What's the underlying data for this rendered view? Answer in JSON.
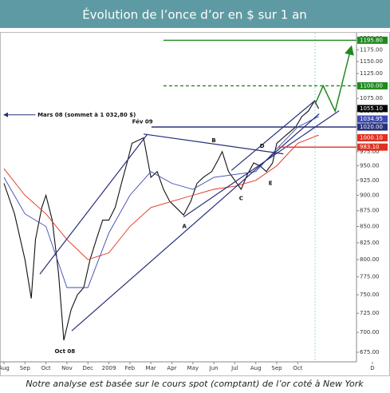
{
  "chart_data": {
    "type": "line",
    "title": "Évolution de l’once d’or en $ sur 1 an",
    "caption": "Notre analyse est basée sur le cours spot (comptant) de l’or coté à New York",
    "log_scale": true,
    "xlim": [
      -0.19,
      16.8
    ],
    "ylim": [
      675,
      1200
    ],
    "xticks": [
      {
        "value": 0,
        "label": "Aug"
      },
      {
        "value": 1,
        "label": "Sep"
      },
      {
        "value": 2,
        "label": "Oct"
      },
      {
        "value": 3,
        "label": "Nov"
      },
      {
        "value": 4,
        "label": "Dec"
      },
      {
        "value": 5,
        "label": "2009"
      },
      {
        "value": 6,
        "label": "Feb"
      },
      {
        "value": 7,
        "label": "Mar"
      },
      {
        "value": 8,
        "label": "Apr"
      },
      {
        "value": 9,
        "label": "May"
      },
      {
        "value": 10,
        "label": "Jun"
      },
      {
        "value": 11,
        "label": "Jul"
      },
      {
        "value": 12,
        "label": "Aug"
      },
      {
        "value": 13,
        "label": "Sep"
      },
      {
        "value": 14,
        "label": "Oct"
      },
      {
        "value": 17.56,
        "label": "D"
      }
    ],
    "yticks": [
      {
        "value": 675,
        "label": "675.00"
      },
      {
        "value": 700,
        "label": "700.00"
      },
      {
        "value": 725,
        "label": "725.00"
      },
      {
        "value": 750,
        "label": "750.00"
      },
      {
        "value": 775,
        "label": "775.00"
      },
      {
        "value": 800,
        "label": "800.00"
      },
      {
        "value": 825,
        "label": "825.00"
      },
      {
        "value": 850,
        "label": "850.00"
      },
      {
        "value": 875,
        "label": "875.00"
      },
      {
        "value": 900,
        "label": "900.00"
      },
      {
        "value": 925,
        "label": "925.00"
      },
      {
        "value": 950,
        "label": "950.00"
      },
      {
        "value": 975,
        "label": "975.00"
      },
      {
        "value": 1025,
        "label": "1025.00"
      },
      {
        "value": 1050,
        "label": "1050.00"
      },
      {
        "value": 1075,
        "label": "1075.00"
      },
      {
        "value": 1125,
        "label": "1125.00"
      },
      {
        "value": 1150,
        "label": "1150.00"
      },
      {
        "value": 1175,
        "label": "1175.00"
      },
      {
        "value": 1200,
        "label": "1200.00"
      }
    ],
    "series": [
      {
        "color": "#111111",
        "x": [
          0,
          0.5,
          1,
          1.3,
          1.5,
          1.8,
          2,
          2.3,
          2.6,
          2.85,
          3.2,
          3.5,
          3.8,
          4.1,
          4.4,
          4.7,
          5,
          5.3,
          5.6,
          5.9,
          6.1,
          6.65,
          7,
          7.3,
          7.6,
          7.9,
          8.2,
          8.56,
          8.9,
          9.2,
          9.5,
          9.9,
          10.2,
          10.4,
          10.7,
          11,
          11.3,
          11.6,
          11.9,
          12.2,
          12.5,
          12.8,
          13,
          13.3,
          13.6,
          13.9,
          14.2,
          14.5,
          14.8,
          15
        ],
        "values": [
          920,
          870,
          800,
          745,
          830,
          880,
          900,
          860,
          780,
          690,
          730,
          750,
          760,
          800,
          830,
          860,
          860,
          880,
          920,
          960,
          990,
          1000,
          930,
          940,
          910,
          890,
          880,
          868,
          890,
          920,
          930,
          940,
          960,
          975,
          940,
          925,
          910,
          935,
          955,
          950,
          940,
          955,
          990,
          1000,
          1010,
          1020,
          1040,
          1050,
          1070,
          1055
        ]
      },
      {
        "color": "#3a4ab0",
        "x": [
          0,
          1,
          2,
          3,
          4,
          5,
          6,
          7,
          8,
          9,
          10,
          11,
          12,
          13,
          14,
          15
        ],
        "values": [
          930,
          870,
          850,
          760,
          760,
          840,
          900,
          940,
          920,
          910,
          930,
          935,
          940,
          980,
          1020,
          1040
        ]
      },
      {
        "color": "#e03020",
        "x": [
          0,
          1,
          2,
          3,
          4,
          5,
          6,
          7,
          8,
          9,
          10,
          11,
          12,
          13,
          14,
          15
        ],
        "values": [
          945,
          900,
          870,
          830,
          800,
          810,
          850,
          880,
          890,
          900,
          910,
          915,
          925,
          950,
          990,
          1005
        ]
      }
    ],
    "trendlines": [
      {
        "x": [
          3.23,
          15.02
        ],
        "y": [
          702,
          1045
        ]
      },
      {
        "x": [
          1.71,
          6.84
        ],
        "y": [
          779,
          1007
        ]
      },
      {
        "x": [
          6.65,
          13.31
        ],
        "y": [
          1007,
          971
        ]
      },
      {
        "x": [
          8.56,
          15.97
        ],
        "y": [
          865,
          1051
        ]
      },
      {
        "x": [
          10.84,
          14.83
        ],
        "y": [
          942,
          1071
        ]
      }
    ],
    "projection": {
      "color": "#1e8a1e",
      "x": [
        14.83,
        15.21,
        15.78,
        16.54
      ],
      "y": [
        1064,
        1100,
        1050,
        1180
      ]
    },
    "levels": [
      {
        "value": 1195.8,
        "label": "1195.80",
        "color": "#1e8a1e"
      },
      {
        "value": 1100,
        "label": "1100.00",
        "color": "#1e8a1e",
        "dash": true
      },
      {
        "value": 1055.1,
        "label": "1055.10",
        "color": "#000000"
      },
      {
        "value": 1034.95,
        "label": "1034.95",
        "color": "#3a4ab0"
      },
      {
        "value": 1020,
        "label": "1020.00",
        "color": "#28307a"
      },
      {
        "value": 1000.1,
        "label": "1000.10",
        "color": "#e03020"
      },
      {
        "value": 983.1,
        "label": "983.10",
        "color": "#e03020"
      }
    ],
    "annotations": [
      "Mars 08 (sommet à 1 032,80 $)",
      "Fév 09",
      "Oct 08",
      "A",
      "B",
      "C",
      "D",
      "E"
    ]
  }
}
